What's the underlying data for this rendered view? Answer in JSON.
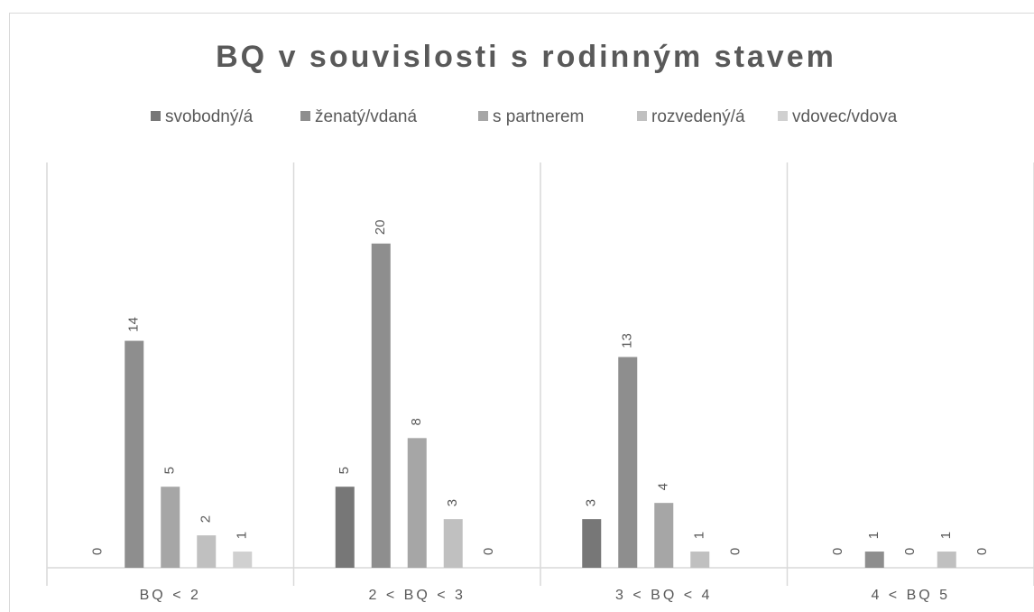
{
  "chart_data": {
    "type": "bar",
    "title": "BQ v souvislosti s rodinným stavem",
    "categories": [
      "BQ < 2",
      "2 < BQ < 3",
      "3 < BQ < 4",
      "4 < BQ 5"
    ],
    "series": [
      {
        "name": "svobodný/á",
        "color": "#777777",
        "values": [
          0,
          5,
          3,
          0
        ]
      },
      {
        "name": "ženatý/vdaná",
        "color": "#8e8e8e",
        "values": [
          14,
          20,
          13,
          1
        ]
      },
      {
        "name": "s partnerem",
        "color": "#a6a6a6",
        "values": [
          5,
          8,
          4,
          0
        ]
      },
      {
        "name": "rozvedený/á",
        "color": "#c0c0c0",
        "values": [
          2,
          3,
          1,
          1
        ]
      },
      {
        "name": "vdovec/vdova",
        "color": "#d0d0d0",
        "values": [
          1,
          0,
          0,
          0
        ]
      }
    ],
    "ylim": [
      0,
      25
    ],
    "legend": "top"
  }
}
